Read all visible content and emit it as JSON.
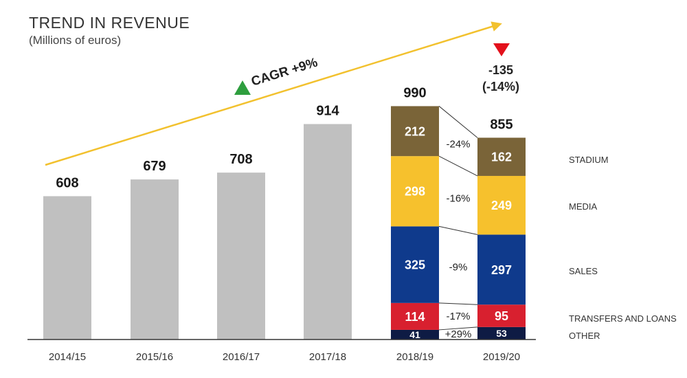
{
  "chart_data": {
    "type": "bar",
    "title": "TREND IN REVENUE",
    "subtitle": "(Millions of euros)",
    "unit": "Millions of euros",
    "categories": [
      "2014/15",
      "2015/16",
      "2016/17",
      "2017/18",
      "2018/19",
      "2019/20"
    ],
    "totals": [
      608,
      679,
      708,
      914,
      990,
      855
    ],
    "total_labels": [
      "608",
      "679",
      "708",
      "914",
      "990",
      "855"
    ],
    "stacked_years": [
      "2018/19",
      "2019/20"
    ],
    "segments": [
      {
        "name": "OTHER",
        "color": "#0e1b44",
        "values": [
          41,
          53
        ],
        "labels": [
          "41",
          "53"
        ],
        "change": "+29%"
      },
      {
        "name": "TRANSFERS AND LOANS",
        "color": "#d8202f",
        "values": [
          114,
          95
        ],
        "labels": [
          "114",
          "95"
        ],
        "change": "-17%"
      },
      {
        "name": "SALES",
        "color": "#0f3a8c",
        "values": [
          325,
          297
        ],
        "labels": [
          "325",
          "297"
        ],
        "change": "-9%"
      },
      {
        "name": "MEDIA",
        "color": "#f6c12d",
        "values": [
          298,
          249
        ],
        "labels": [
          "298",
          "249"
        ],
        "change": "-16%"
      },
      {
        "name": "STADIUM",
        "color": "#7a6438",
        "values": [
          212,
          162
        ],
        "labels": [
          "212",
          "162"
        ],
        "change": "-24%"
      }
    ],
    "legend_order": [
      "STADIUM",
      "MEDIA",
      "SALES",
      "TRANSFERS AND LOANS",
      "OTHER"
    ],
    "annotations": {
      "cagr": "CAGR +9%",
      "decline_value": "-135",
      "decline_pct": "(-14%)"
    },
    "colors": {
      "gray_bar": "#c0c0c0",
      "arrow": "#f2c12e",
      "up_triangle": "#2e9e3e",
      "down_triangle": "#e3101b"
    }
  }
}
